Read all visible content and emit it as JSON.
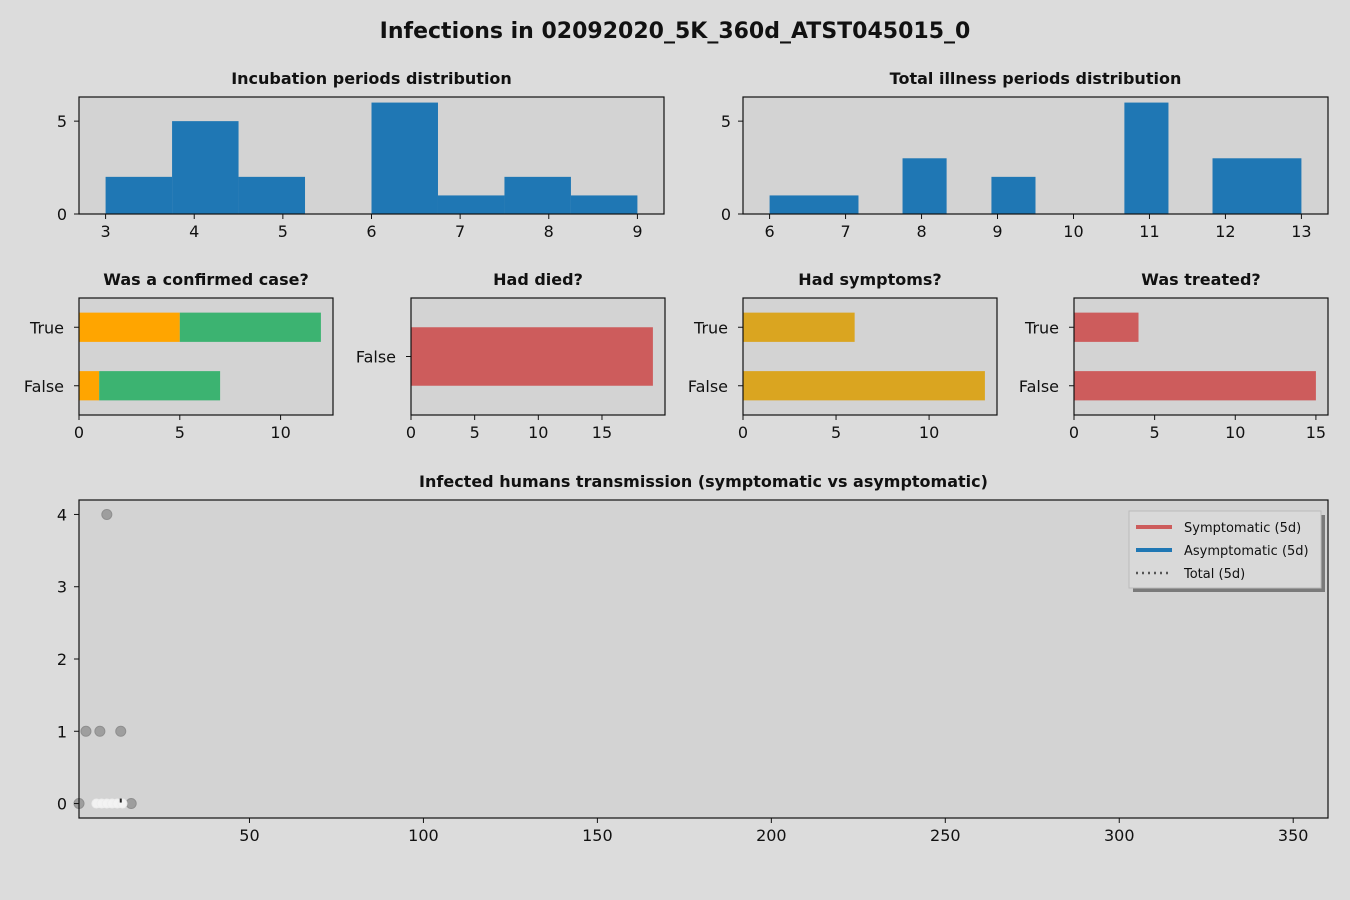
{
  "page_title": "Infections in 02092020_5K_360d_ATST045015_0",
  "chart_data": [
    {
      "id": "incubation",
      "type": "bar",
      "title": "Incubation periods distribution",
      "xlim": [
        2.7,
        9.3
      ],
      "ylim": [
        0,
        6.3
      ],
      "xticks": [
        3,
        4,
        5,
        6,
        7,
        8,
        9
      ],
      "yticks": [
        0,
        5
      ],
      "bins": [
        {
          "x0": 3.0,
          "x1": 3.75,
          "value": 2
        },
        {
          "x0": 3.75,
          "x1": 4.5,
          "value": 5
        },
        {
          "x0": 4.5,
          "x1": 5.25,
          "value": 2
        },
        {
          "x0": 5.25,
          "x1": 6.0,
          "value": 0
        },
        {
          "x0": 6.0,
          "x1": 6.75,
          "value": 6
        },
        {
          "x0": 6.75,
          "x1": 7.5,
          "value": 1
        },
        {
          "x0": 7.5,
          "x1": 8.25,
          "value": 2
        },
        {
          "x0": 8.25,
          "x1": 9.0,
          "value": 1
        }
      ],
      "color": "#1f77b4"
    },
    {
      "id": "illness",
      "type": "bar",
      "title": "Total illness periods distribution",
      "xlim": [
        5.65,
        13.35
      ],
      "ylim": [
        0,
        6.3
      ],
      "xticks": [
        6,
        7,
        8,
        9,
        10,
        11,
        12,
        13
      ],
      "yticks": [
        0,
        5
      ],
      "bins": [
        {
          "x0": 6.0,
          "x1": 7.17,
          "value": 1
        },
        {
          "x0": 7.75,
          "x1": 8.33,
          "value": 3
        },
        {
          "x0": 8.92,
          "x1": 9.5,
          "value": 2
        },
        {
          "x0": 10.67,
          "x1": 11.25,
          "value": 6
        },
        {
          "x0": 11.83,
          "x1": 13.0,
          "value": 3
        }
      ],
      "color": "#1f77b4"
    },
    {
      "id": "confirmed",
      "type": "bar",
      "orientation": "horizontal",
      "stacked": true,
      "title": "Was a confirmed case?",
      "categories": [
        "True",
        "False"
      ],
      "xlim": [
        0,
        12.6
      ],
      "xticks": [
        0,
        5,
        10
      ],
      "series": [
        {
          "values": [
            5,
            1
          ],
          "color": "#ffa500"
        },
        {
          "values": [
            7,
            6
          ],
          "color": "#3cb371"
        }
      ]
    },
    {
      "id": "died",
      "type": "bar",
      "orientation": "horizontal",
      "title": "Had died?",
      "categories": [
        "False"
      ],
      "xlim": [
        0,
        19.95
      ],
      "xticks": [
        0,
        5,
        10,
        15
      ],
      "series": [
        {
          "values": [
            19
          ],
          "color": "#cd5c5c"
        }
      ]
    },
    {
      "id": "symptoms",
      "type": "bar",
      "orientation": "horizontal",
      "title": "Had symptoms?",
      "categories": [
        "True",
        "False"
      ],
      "xlim": [
        0,
        13.65
      ],
      "xticks": [
        0,
        5,
        10
      ],
      "series": [
        {
          "values": [
            6,
            13
          ],
          "color": "#daa520"
        }
      ]
    },
    {
      "id": "treated",
      "type": "bar",
      "orientation": "horizontal",
      "title": "Was treated?",
      "categories": [
        "True",
        "False"
      ],
      "xlim": [
        0,
        15.75
      ],
      "xticks": [
        0,
        5,
        10,
        15
      ],
      "series": [
        {
          "values": [
            4,
            15
          ],
          "color": "#cd5c5c"
        }
      ]
    },
    {
      "id": "transmission",
      "type": "scatter",
      "title": "Infected humans transmission (symptomatic vs asymptomatic)",
      "xlim": [
        1,
        360
      ],
      "ylim": [
        -0.2,
        4.2
      ],
      "xticks": [
        50,
        100,
        150,
        200,
        250,
        300,
        350
      ],
      "yticks": [
        0,
        1,
        2,
        3,
        4
      ],
      "points": [
        {
          "x": 9,
          "y": 4,
          "kind": "gray"
        },
        {
          "x": 3,
          "y": 1,
          "kind": "gray"
        },
        {
          "x": 7,
          "y": 1,
          "kind": "gray"
        },
        {
          "x": 13,
          "y": 1,
          "kind": "gray"
        },
        {
          "x": 1,
          "y": 0,
          "kind": "gray"
        },
        {
          "x": 16,
          "y": 0,
          "kind": "gray"
        },
        {
          "x": 6,
          "y": 0,
          "kind": "white"
        },
        {
          "x": 7.5,
          "y": 0,
          "kind": "white"
        },
        {
          "x": 9,
          "y": 0,
          "kind": "white"
        },
        {
          "x": 10.5,
          "y": 0,
          "kind": "white"
        },
        {
          "x": 12,
          "y": 0,
          "kind": "white"
        },
        {
          "x": 13.5,
          "y": 0,
          "kind": "white"
        }
      ],
      "legend": [
        {
          "label": "Symptomatic (5d)",
          "color": "#cd5c5c",
          "style": "solid"
        },
        {
          "label": "Asymptomatic (5d)",
          "color": "#1f77b4",
          "style": "solid"
        },
        {
          "label": "Total (5d)",
          "color": "#555555",
          "style": "dotted"
        }
      ],
      "legend_position": "top-right"
    }
  ]
}
